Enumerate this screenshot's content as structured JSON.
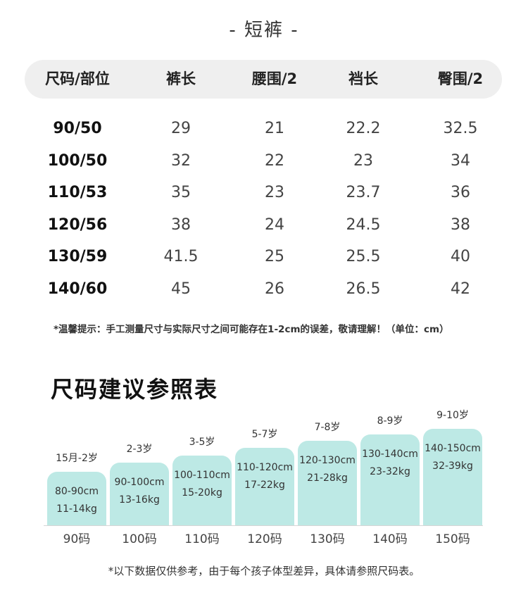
{
  "title": "- 短裤 -",
  "table": {
    "headers": [
      "尺码/部位",
      "裤长",
      "腰围/2",
      "裆长",
      "臀围/2"
    ],
    "rows": [
      [
        "90/50",
        "29",
        "21",
        "22.2",
        "32.5"
      ],
      [
        "100/50",
        "32",
        "22",
        "23",
        "34"
      ],
      [
        "110/53",
        "35",
        "23",
        "23.7",
        "36"
      ],
      [
        "120/56",
        "38",
        "24",
        "24.5",
        "38"
      ],
      [
        "130/59",
        "41.5",
        "25",
        "25.5",
        "40"
      ],
      [
        "140/60",
        "45",
        "26",
        "26.5",
        "42"
      ]
    ]
  },
  "note": "*温馨提示：手工测量尺寸与实际尺寸之间可能存在1-2cm的误差，敬请理解！（单位：cm）",
  "size_guide": {
    "title": "尺码建议参照表",
    "items": [
      {
        "age": "15月-2岁",
        "height": "80-90cm",
        "weight": "11-14kg",
        "code": "90码"
      },
      {
        "age": "2-3岁",
        "height": "90-100cm",
        "weight": "13-16kg",
        "code": "100码"
      },
      {
        "age": "3-5岁",
        "height": "100-110cm",
        "weight": "15-20kg",
        "code": "110码"
      },
      {
        "age": "5-7岁",
        "height": "110-120cm",
        "weight": "17-22kg",
        "code": "120码"
      },
      {
        "age": "7-8岁",
        "height": "120-130cm",
        "weight": "21-28kg",
        "code": "130码"
      },
      {
        "age": "8-9岁",
        "height": "130-140cm",
        "weight": "23-32kg",
        "code": "140码"
      },
      {
        "age": "9-10岁",
        "height": "140-150cm",
        "weight": "32-39kg",
        "code": "150码"
      }
    ],
    "footnote": "*以下数据仅供参考，由于每个孩子体型差异，具体请参照尺码表。"
  },
  "colors": {
    "bar": "#bde9e5",
    "header_bg": "#efefef"
  }
}
